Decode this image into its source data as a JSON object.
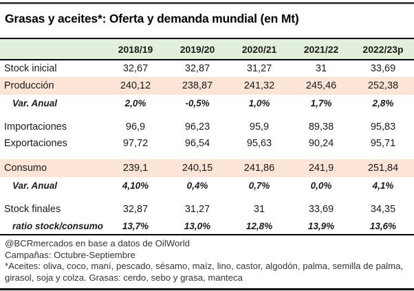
{
  "title": "Grasas y aceites*: Oferta y demanda mundial (en Mt)",
  "colors": {
    "header_bg": "#e2efda",
    "highlight_bg": "#fce4d6",
    "rule": "#000000",
    "top_rule": "#454545",
    "footer_text": "#333333"
  },
  "table": {
    "columns": [
      "2018/19",
      "2019/20",
      "2020/21",
      "2021/22",
      "2022/23p"
    ],
    "rows": [
      {
        "label": "Stock inicial",
        "values": [
          "32,67",
          "32,87",
          "31,27",
          "31",
          "33,69"
        ],
        "style": "normal",
        "gap_before": false
      },
      {
        "label": "Producción",
        "values": [
          "240,12",
          "238,87",
          "241,32",
          "245,46",
          "252,38"
        ],
        "style": "highlight",
        "gap_before": false
      },
      {
        "label": "Var. Anual",
        "values": [
          "2,0%",
          "-0,5%",
          "1,0%",
          "1,7%",
          "2,8%"
        ],
        "style": "variation",
        "gap_before": false
      },
      {
        "label": "Importaciones",
        "values": [
          "96,9",
          "96,23",
          "95,9",
          "89,38",
          "95,83"
        ],
        "style": "normal",
        "gap_before": true
      },
      {
        "label": "Exportaciones",
        "values": [
          "97,72",
          "96,54",
          "95,63",
          "90,24",
          "95,71"
        ],
        "style": "normal",
        "gap_before": false
      },
      {
        "label": "Consumo",
        "values": [
          "239,1",
          "240,15",
          "241,86",
          "241,9",
          "251,84"
        ],
        "style": "highlight",
        "gap_before": true
      },
      {
        "label": "Var. Anual",
        "values": [
          "4,10%",
          "0,4%",
          "0,7%",
          "0,0%",
          "4,1%"
        ],
        "style": "variation",
        "gap_before": false
      },
      {
        "label": "Stock finales",
        "values": [
          "32,87",
          "31,27",
          "31",
          "33,69",
          "34,35"
        ],
        "style": "normal",
        "gap_before": true
      },
      {
        "label": "ratio stock/consumo",
        "values": [
          "13,7%",
          "13,0%",
          "12,8%",
          "13,9%",
          "13,6%"
        ],
        "style": "variation",
        "gap_before": false
      }
    ]
  },
  "footer": {
    "source": "@BCRmercados en base a datos de OilWorld",
    "campaigns": "Campañas: Octubre-Septiembre",
    "footnote": "*Aceites: oliva, coco, maní, pescado, sésamo, maíz, lino, castor, algodón, palma, semilla de palma, girasol, soja y colza. Grasas: cerdo, sebo y grasa, manteca"
  },
  "chart_data": {
    "type": "table",
    "title": "Grasas y aceites*: Oferta y demanda mundial (en Mt)",
    "units": "Mt",
    "categories": [
      "2018/19",
      "2019/20",
      "2020/21",
      "2021/22",
      "2022/23p"
    ],
    "series": [
      {
        "name": "Stock inicial",
        "values": [
          32.67,
          32.87,
          31.27,
          31,
          33.69
        ]
      },
      {
        "name": "Producción",
        "values": [
          240.12,
          238.87,
          241.32,
          245.46,
          252.38
        ]
      },
      {
        "name": "Var. Anual Producción (%)",
        "values": [
          2.0,
          -0.5,
          1.0,
          1.7,
          2.8
        ]
      },
      {
        "name": "Importaciones",
        "values": [
          96.9,
          96.23,
          95.9,
          89.38,
          95.83
        ]
      },
      {
        "name": "Exportaciones",
        "values": [
          97.72,
          96.54,
          95.63,
          90.24,
          95.71
        ]
      },
      {
        "name": "Consumo",
        "values": [
          239.1,
          240.15,
          241.86,
          241.9,
          251.84
        ]
      },
      {
        "name": "Var. Anual Consumo (%)",
        "values": [
          4.1,
          0.4,
          0.7,
          0.0,
          4.1
        ]
      },
      {
        "name": "Stock finales",
        "values": [
          32.87,
          31.27,
          31,
          33.69,
          34.35
        ]
      },
      {
        "name": "ratio stock/consumo (%)",
        "values": [
          13.7,
          13.0,
          12.8,
          13.9,
          13.6
        ]
      }
    ]
  }
}
